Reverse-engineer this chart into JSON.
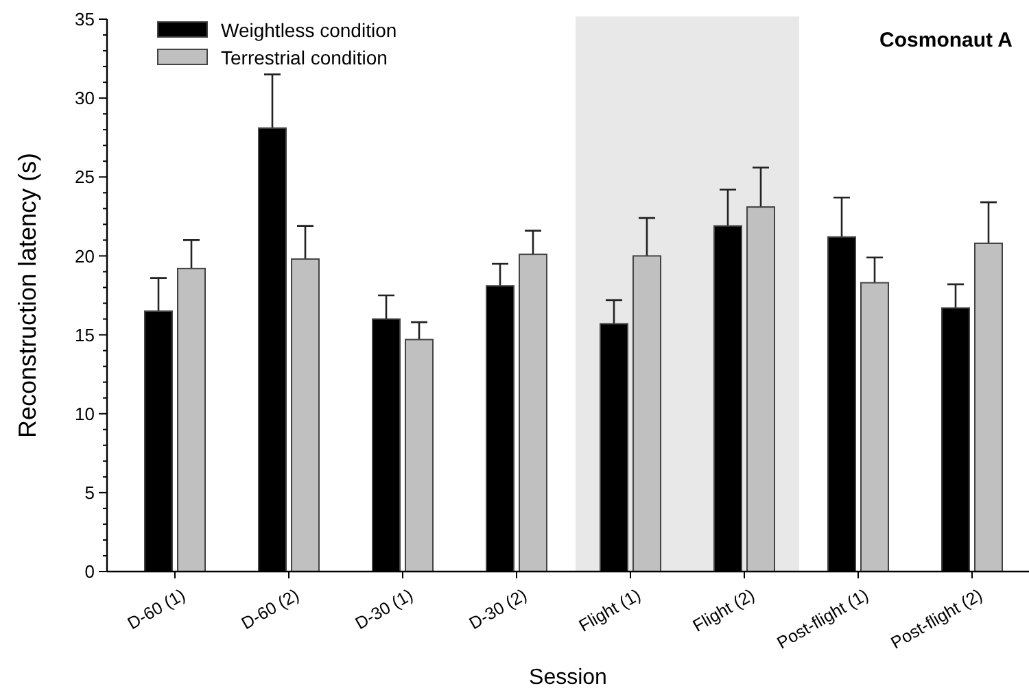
{
  "chart_data": {
    "type": "bar",
    "title": "Cosmonaut A",
    "xlabel": "Session",
    "ylabel": "Reconstruction latency (s)",
    "categories": [
      "D-60 (1)",
      "D-60 (2)",
      "D-30 (1)",
      "D-30 (2)",
      "Flight (1)",
      "Flight (2)",
      "Post-flight (1)",
      "Post-flight (2)"
    ],
    "series": [
      {
        "name": "Weightless condition",
        "color": "#000000",
        "values": [
          16.5,
          28.1,
          16.0,
          18.1,
          15.7,
          21.9,
          21.2,
          16.7
        ],
        "errors": [
          [
            16.5,
            18.6
          ],
          [
            28.1,
            31.5
          ],
          [
            16.0,
            17.5
          ],
          [
            18.1,
            19.5
          ],
          [
            15.7,
            17.2
          ],
          [
            21.9,
            24.2
          ],
          [
            21.2,
            23.7
          ],
          [
            16.7,
            18.2
          ]
        ]
      },
      {
        "name": "Terrestrial condition",
        "color": "#c0c0c0",
        "values": [
          19.2,
          19.8,
          14.7,
          20.1,
          20.0,
          23.1,
          18.3,
          20.8
        ],
        "errors": [
          [
            19.2,
            21.0
          ],
          [
            19.8,
            21.9
          ],
          [
            14.7,
            15.8
          ],
          [
            20.1,
            21.6
          ],
          [
            20.0,
            22.4
          ],
          [
            23.1,
            25.6
          ],
          [
            18.3,
            19.9
          ],
          [
            20.8,
            23.4
          ]
        ]
      }
    ],
    "ylim": [
      0,
      35
    ],
    "yticks": [
      0,
      {
        "value": 1,
        "label": null
      },
      {
        "value": 2,
        "label": null
      },
      {
        "value": 3,
        "label": null
      },
      {
        "value": 4,
        "label": null
      },
      5,
      {
        "value": 6,
        "label": null
      },
      {
        "value": 7,
        "label": null
      },
      {
        "value": 8,
        "label": null
      },
      {
        "value": 9,
        "label": null
      },
      10,
      {
        "value": 11,
        "label": null
      },
      {
        "value": 12,
        "label": null
      },
      {
        "value": 13,
        "label": null
      },
      {
        "value": 14,
        "label": null
      },
      15,
      {
        "value": 16,
        "label": null
      },
      {
        "value": 17,
        "label": null
      },
      {
        "value": 18,
        "label": null
      },
      {
        "value": 19,
        "label": null
      },
      20,
      {
        "value": 21,
        "label": null
      },
      {
        "value": 22,
        "label": null
      },
      {
        "value": 23,
        "label": null
      },
      {
        "value": 24,
        "label": null
      },
      25,
      {
        "value": 26,
        "label": null
      },
      {
        "value": 27,
        "label": null
      },
      {
        "value": 28,
        "label": null
      },
      {
        "value": 29,
        "label": null
      },
      30,
      {
        "value": 31,
        "label": null
      },
      {
        "value": 32,
        "label": null
      },
      {
        "value": 33,
        "label": null
      },
      {
        "value": 34,
        "label": null
      },
      35
    ],
    "bands": [
      {
        "axis": "x",
        "from": "Flight (1)",
        "to": "Flight (2)",
        "color": "#e8e8e8"
      }
    ],
    "grid": false,
    "legend": "top left"
  }
}
